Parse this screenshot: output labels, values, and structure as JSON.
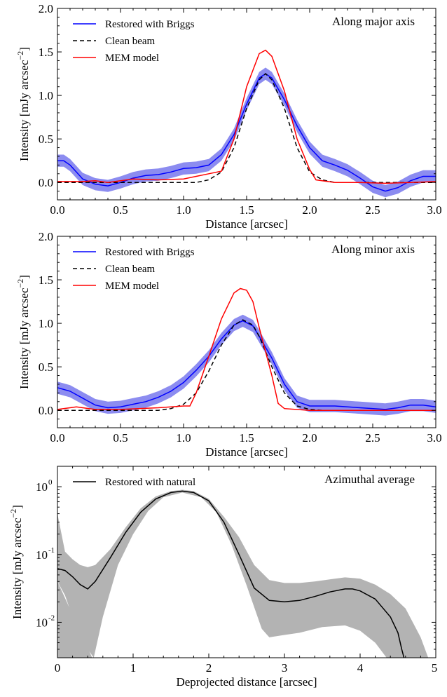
{
  "chart_data": [
    {
      "type": "line",
      "annotation": "Along major axis",
      "xlabel": "Distance [arcsec]",
      "ylabel": "Intensity [mJy arcsec",
      "ylabel_exp": "−2",
      "ylabel_close": "]",
      "xlim": [
        0,
        3.0
      ],
      "ylim": [
        -0.2,
        2.0
      ],
      "xticks": [
        0.0,
        0.5,
        1.0,
        1.5,
        2.0,
        2.5,
        3.0
      ],
      "xtick_labels": [
        "0.0",
        "0.5",
        "1.0",
        "1.5",
        "2.0",
        "2.5",
        "3.0"
      ],
      "yticks": [
        0.0,
        0.5,
        1.0,
        1.5,
        2.0
      ],
      "ytick_labels": [
        "0.0",
        "0.5",
        "1.0",
        "1.5",
        "2.0"
      ],
      "legend_position": "top-left",
      "series": [
        {
          "name": "Restored with Briggs",
          "color": "#0000ff",
          "style": "solid",
          "band": 0.07,
          "band_color": "#8c8cf0",
          "points": [
            [
              0.0,
              0.25
            ],
            [
              0.05,
              0.25
            ],
            [
              0.1,
              0.2
            ],
            [
              0.15,
              0.12
            ],
            [
              0.2,
              0.04
            ],
            [
              0.3,
              -0.02
            ],
            [
              0.4,
              -0.04
            ],
            [
              0.5,
              0.0
            ],
            [
              0.6,
              0.05
            ],
            [
              0.7,
              0.08
            ],
            [
              0.8,
              0.09
            ],
            [
              0.9,
              0.12
            ],
            [
              1.0,
              0.16
            ],
            [
              1.1,
              0.17
            ],
            [
              1.2,
              0.2
            ],
            [
              1.3,
              0.32
            ],
            [
              1.4,
              0.55
            ],
            [
              1.5,
              0.9
            ],
            [
              1.6,
              1.2
            ],
            [
              1.65,
              1.25
            ],
            [
              1.7,
              1.2
            ],
            [
              1.8,
              0.95
            ],
            [
              1.9,
              0.65
            ],
            [
              2.0,
              0.4
            ],
            [
              2.1,
              0.25
            ],
            [
              2.2,
              0.2
            ],
            [
              2.3,
              0.14
            ],
            [
              2.4,
              0.05
            ],
            [
              2.5,
              -0.05
            ],
            [
              2.6,
              -0.1
            ],
            [
              2.7,
              -0.06
            ],
            [
              2.8,
              0.02
            ],
            [
              2.9,
              0.07
            ],
            [
              3.0,
              0.07
            ]
          ]
        },
        {
          "name": "Clean beam",
          "color": "#000000",
          "style": "dashed",
          "points": [
            [
              0.0,
              0.0
            ],
            [
              1.1,
              0.0
            ],
            [
              1.2,
              0.03
            ],
            [
              1.3,
              0.12
            ],
            [
              1.4,
              0.4
            ],
            [
              1.5,
              0.85
            ],
            [
              1.6,
              1.18
            ],
            [
              1.65,
              1.25
            ],
            [
              1.7,
              1.18
            ],
            [
              1.8,
              0.85
            ],
            [
              1.9,
              0.4
            ],
            [
              2.0,
              0.12
            ],
            [
              2.1,
              0.03
            ],
            [
              2.2,
              0.0
            ],
            [
              3.0,
              0.0
            ]
          ]
        },
        {
          "name": "MEM model",
          "color": "#ff0000",
          "style": "solid",
          "points": [
            [
              0.0,
              0.01
            ],
            [
              0.2,
              0.01
            ],
            [
              0.3,
              0.02
            ],
            [
              0.4,
              0.0
            ],
            [
              0.5,
              0.02
            ],
            [
              0.6,
              0.04
            ],
            [
              0.8,
              0.03
            ],
            [
              1.0,
              0.04
            ],
            [
              1.1,
              0.07
            ],
            [
              1.2,
              0.1
            ],
            [
              1.3,
              0.13
            ],
            [
              1.4,
              0.5
            ],
            [
              1.5,
              1.1
            ],
            [
              1.6,
              1.48
            ],
            [
              1.65,
              1.52
            ],
            [
              1.7,
              1.45
            ],
            [
              1.8,
              1.05
            ],
            [
              1.9,
              0.5
            ],
            [
              2.0,
              0.15
            ],
            [
              2.05,
              0.03
            ],
            [
              2.2,
              0.0
            ],
            [
              2.4,
              0.0
            ],
            [
              2.6,
              -0.01
            ],
            [
              2.8,
              0.0
            ],
            [
              3.0,
              0.01
            ]
          ]
        }
      ]
    },
    {
      "type": "line",
      "annotation": "Along minor axis",
      "xlabel": "Distance [arcsec]",
      "ylabel": "Intensity [mJy arcsec",
      "ylabel_exp": "−2",
      "ylabel_close": "]",
      "xlim": [
        0,
        3.0
      ],
      "ylim": [
        -0.2,
        2.0
      ],
      "xticks": [
        0.0,
        0.5,
        1.0,
        1.5,
        2.0,
        2.5,
        3.0
      ],
      "xtick_labels": [
        "0.0",
        "0.5",
        "1.0",
        "1.5",
        "2.0",
        "2.5",
        "3.0"
      ],
      "yticks": [
        0.0,
        0.5,
        1.0,
        1.5,
        2.0
      ],
      "ytick_labels": [
        "0.0",
        "0.5",
        "1.0",
        "1.5",
        "2.0"
      ],
      "legend_position": "top-left",
      "series": [
        {
          "name": "Restored with Briggs",
          "color": "#0000ff",
          "style": "solid",
          "band": 0.07,
          "band_color": "#8c8cf0",
          "points": [
            [
              0.0,
              0.26
            ],
            [
              0.1,
              0.22
            ],
            [
              0.2,
              0.14
            ],
            [
              0.3,
              0.06
            ],
            [
              0.4,
              0.03
            ],
            [
              0.5,
              0.04
            ],
            [
              0.6,
              0.07
            ],
            [
              0.7,
              0.1
            ],
            [
              0.8,
              0.15
            ],
            [
              0.9,
              0.22
            ],
            [
              1.0,
              0.32
            ],
            [
              1.1,
              0.46
            ],
            [
              1.2,
              0.62
            ],
            [
              1.3,
              0.82
            ],
            [
              1.4,
              0.98
            ],
            [
              1.47,
              1.03
            ],
            [
              1.55,
              0.97
            ],
            [
              1.6,
              0.85
            ],
            [
              1.7,
              0.6
            ],
            [
              1.8,
              0.3
            ],
            [
              1.9,
              0.1
            ],
            [
              2.0,
              0.05
            ],
            [
              2.2,
              0.05
            ],
            [
              2.4,
              0.03
            ],
            [
              2.6,
              0.01
            ],
            [
              2.7,
              0.03
            ],
            [
              2.8,
              0.06
            ],
            [
              2.9,
              0.06
            ],
            [
              3.0,
              0.04
            ]
          ]
        },
        {
          "name": "Clean beam",
          "color": "#000000",
          "style": "dashed",
          "points": [
            [
              0.0,
              0.0
            ],
            [
              0.8,
              0.0
            ],
            [
              0.9,
              0.02
            ],
            [
              1.0,
              0.07
            ],
            [
              1.1,
              0.2
            ],
            [
              1.2,
              0.45
            ],
            [
              1.3,
              0.75
            ],
            [
              1.4,
              0.98
            ],
            [
              1.47,
              1.04
            ],
            [
              1.55,
              0.98
            ],
            [
              1.6,
              0.85
            ],
            [
              1.7,
              0.5
            ],
            [
              1.8,
              0.2
            ],
            [
              1.9,
              0.05
            ],
            [
              2.0,
              0.01
            ],
            [
              2.1,
              0.0
            ],
            [
              3.0,
              0.0
            ]
          ]
        },
        {
          "name": "MEM model",
          "color": "#ff0000",
          "style": "solid",
          "points": [
            [
              0.0,
              0.01
            ],
            [
              0.1,
              0.03
            ],
            [
              0.15,
              0.04
            ],
            [
              0.2,
              0.03
            ],
            [
              0.3,
              0.01
            ],
            [
              0.5,
              0.01
            ],
            [
              0.8,
              0.03
            ],
            [
              1.0,
              0.05
            ],
            [
              1.05,
              0.05
            ],
            [
              1.1,
              0.2
            ],
            [
              1.2,
              0.62
            ],
            [
              1.3,
              1.05
            ],
            [
              1.4,
              1.35
            ],
            [
              1.45,
              1.4
            ],
            [
              1.5,
              1.38
            ],
            [
              1.55,
              1.25
            ],
            [
              1.6,
              0.95
            ],
            [
              1.7,
              0.4
            ],
            [
              1.75,
              0.08
            ],
            [
              1.8,
              0.02
            ],
            [
              2.0,
              0.0
            ],
            [
              3.0,
              0.0
            ]
          ]
        }
      ]
    },
    {
      "type": "line",
      "annotation": "Azimuthal average",
      "xlabel": "Deprojected distance [arcsec]",
      "ylabel": "Intensity [mJy arcsec",
      "ylabel_exp": "−2",
      "ylabel_close": "]",
      "yscale": "log",
      "xlim": [
        0,
        5
      ],
      "ylim": [
        0.003,
        2.0
      ],
      "xticks": [
        0,
        1,
        2,
        3,
        4,
        5
      ],
      "xtick_labels": [
        "0",
        "1",
        "2",
        "3",
        "4",
        "5"
      ],
      "yticks": [
        0.01,
        0.1,
        1.0
      ],
      "ytick_labels": [
        "10",
        "10",
        "10"
      ],
      "ytick_exps": [
        "-2",
        "-1",
        "0"
      ],
      "legend_position": "top-left",
      "series": [
        {
          "name": "Restored with natural",
          "color": "#000000",
          "style": "solid",
          "band_color": "#b3b3b3",
          "points": [
            [
              0.0,
              0.062
            ],
            [
              0.1,
              0.058
            ],
            [
              0.2,
              0.047
            ],
            [
              0.3,
              0.036
            ],
            [
              0.4,
              0.031
            ],
            [
              0.5,
              0.04
            ],
            [
              0.7,
              0.09
            ],
            [
              0.9,
              0.21
            ],
            [
              1.1,
              0.42
            ],
            [
              1.3,
              0.66
            ],
            [
              1.5,
              0.82
            ],
            [
              1.65,
              0.86
            ],
            [
              1.8,
              0.82
            ],
            [
              2.0,
              0.62
            ],
            [
              2.2,
              0.3
            ],
            [
              2.4,
              0.1
            ],
            [
              2.6,
              0.032
            ],
            [
              2.8,
              0.021
            ],
            [
              3.0,
              0.02
            ],
            [
              3.2,
              0.021
            ],
            [
              3.4,
              0.024
            ],
            [
              3.6,
              0.028
            ],
            [
              3.8,
              0.031
            ],
            [
              3.9,
              0.031
            ],
            [
              4.0,
              0.029
            ],
            [
              4.2,
              0.022
            ],
            [
              4.4,
              0.012
            ],
            [
              4.5,
              0.007
            ],
            [
              4.55,
              0.004
            ],
            [
              4.58,
              0.003
            ]
          ],
          "lower": [
            [
              0.0,
              0.04
            ],
            [
              0.1,
              0.025
            ],
            [
              0.2,
              0.012
            ],
            [
              0.3,
              0.006
            ],
            [
              0.4,
              0.004
            ],
            [
              0.48,
              0.003
            ],
            [
              0.6,
              0.012
            ],
            [
              0.8,
              0.07
            ],
            [
              1.0,
              0.2
            ],
            [
              1.2,
              0.44
            ],
            [
              1.4,
              0.7
            ],
            [
              1.65,
              0.82
            ],
            [
              1.9,
              0.7
            ],
            [
              2.1,
              0.42
            ],
            [
              2.3,
              0.14
            ],
            [
              2.5,
              0.035
            ],
            [
              2.7,
              0.008
            ],
            [
              2.8,
              0.006
            ],
            [
              3.0,
              0.0065
            ],
            [
              3.2,
              0.007
            ],
            [
              3.5,
              0.0085
            ],
            [
              3.8,
              0.009
            ],
            [
              4.0,
              0.0075
            ],
            [
              4.2,
              0.005
            ],
            [
              4.35,
              0.003
            ]
          ],
          "upper": [
            [
              0.0,
              0.4
            ],
            [
              0.1,
              0.11
            ],
            [
              0.2,
              0.085
            ],
            [
              0.3,
              0.07
            ],
            [
              0.4,
              0.065
            ],
            [
              0.5,
              0.07
            ],
            [
              0.7,
              0.12
            ],
            [
              0.9,
              0.25
            ],
            [
              1.1,
              0.48
            ],
            [
              1.3,
              0.72
            ],
            [
              1.5,
              0.86
            ],
            [
              1.65,
              0.9
            ],
            [
              1.8,
              0.86
            ],
            [
              2.0,
              0.66
            ],
            [
              2.2,
              0.36
            ],
            [
              2.4,
              0.18
            ],
            [
              2.6,
              0.07
            ],
            [
              2.8,
              0.042
            ],
            [
              3.0,
              0.038
            ],
            [
              3.2,
              0.038
            ],
            [
              3.4,
              0.04
            ],
            [
              3.6,
              0.043
            ],
            [
              3.8,
              0.046
            ],
            [
              4.0,
              0.044
            ],
            [
              4.2,
              0.036
            ],
            [
              4.4,
              0.026
            ],
            [
              4.6,
              0.016
            ],
            [
              4.8,
              0.006
            ],
            [
              4.9,
              0.003
            ]
          ]
        }
      ]
    }
  ]
}
